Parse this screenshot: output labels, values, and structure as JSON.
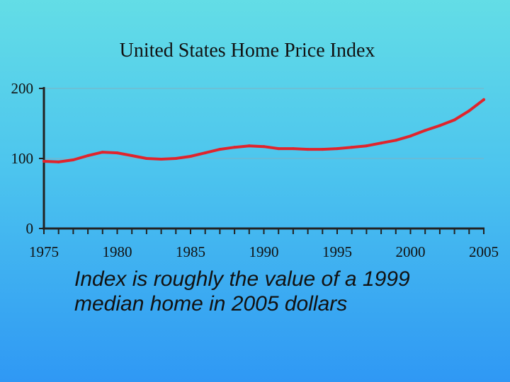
{
  "chart_data": {
    "type": "line",
    "title": "United States Home Price Index",
    "xlabel": "",
    "ylabel": "",
    "xlim": [
      1975,
      2005
    ],
    "ylim": [
      0,
      200
    ],
    "x_ticks": [
      1975,
      1980,
      1985,
      1990,
      1995,
      2000,
      2005
    ],
    "y_ticks": [
      0,
      100,
      200
    ],
    "grid": true,
    "series": [
      {
        "x": [
          1975,
          1976,
          1977,
          1978,
          1979,
          1980,
          1981,
          1982,
          1983,
          1984,
          1985,
          1986,
          1987,
          1988,
          1989,
          1990,
          1991,
          1992,
          1993,
          1994,
          1995,
          1996,
          1997,
          1998,
          1999,
          2000,
          2001,
          2002,
          2003,
          2004,
          2005
        ],
        "y": [
          96,
          95,
          98,
          104,
          109,
          108,
          104,
          100,
          99,
          100,
          103,
          108,
          113,
          116,
          118,
          117,
          114,
          114,
          113,
          113,
          114,
          116,
          118,
          122,
          126,
          132,
          140,
          147,
          155,
          168,
          184
        ],
        "color": "#e0242c"
      }
    ]
  },
  "caption": "Index is roughly the value of a 1999 median home in 2005 dollars"
}
